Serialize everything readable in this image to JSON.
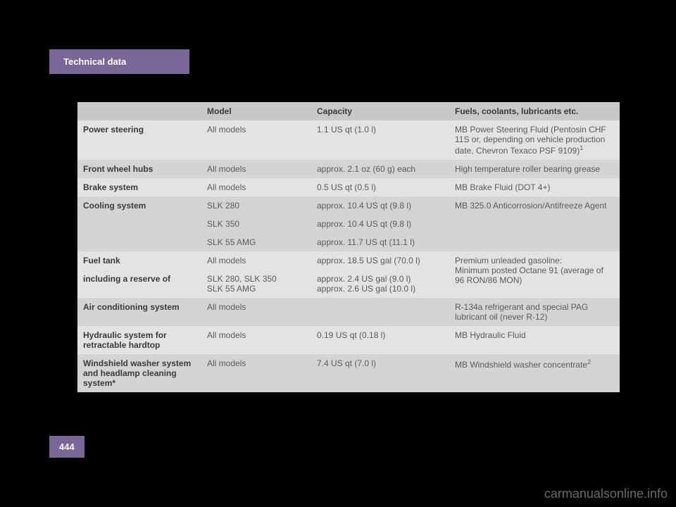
{
  "header": {
    "title": "Technical data"
  },
  "page_number": "444",
  "watermark": "carmanualsonline.info",
  "table": {
    "columns": [
      "",
      "Model",
      "Capacity",
      "Fuels, coolants, lubricants etc."
    ],
    "rows": [
      {
        "label": "Power steering",
        "model": "All models",
        "capacity": "1.1 US qt (1.0 l)",
        "fuels": "MB Power Steering Fluid (Pentosin CHF 11S or, depending on vehicle production date, Chevron Texaco PSF 9109)",
        "sup": "1",
        "shade": "light"
      },
      {
        "label": "Front wheel hubs",
        "model": "All models",
        "capacity": "approx. 2.1 oz (60 g) each",
        "fuels": "High temperature roller bearing grease",
        "shade": "dark"
      },
      {
        "label": "Brake system",
        "model": "All models",
        "capacity": "0.5 US qt (0.5 l)",
        "fuels": "MB Brake Fluid (DOT 4+)",
        "shade": "light"
      },
      {
        "label": "Cooling system",
        "model": "SLK 280",
        "capacity": "approx. 10.4 US qt (9.8 l)",
        "fuels": "MB 325.0 Anticorrosion/Antifreeze Agent",
        "shade": "dark",
        "rowspan_label": 3,
        "rowspan_fuels": 3
      },
      {
        "label": "",
        "model": "SLK 350",
        "capacity": "approx. 10.4 US qt (9.8 l)",
        "fuels": "",
        "shade": "dark",
        "skip_label": true,
        "skip_fuels": true
      },
      {
        "label": "",
        "model": "SLK 55 AMG",
        "capacity": "approx. 11.7 US qt (11.1 l)",
        "fuels": "",
        "shade": "dark",
        "skip_label": true,
        "skip_fuels": true
      },
      {
        "label": "Fuel tank",
        "model": "All models",
        "capacity": "approx. 18.5 US gal (70.0 l)",
        "fuels": "Premium unleaded gasoline:\nMinimum posted Octane 91 (average of\n96 RON/86 MON)",
        "shade": "light",
        "rowspan_fuels": 2
      },
      {
        "label": "including a reserve of",
        "model": "SLK 280, SLK 350\nSLK 55 AMG",
        "capacity": "approx. 2.4 US gal (9.0 l)\napprox. 2.6 US gal (10.0 l)",
        "fuels": "",
        "shade": "light",
        "skip_fuels": true
      },
      {
        "label": "Air conditioning system",
        "model": "All models",
        "capacity": "",
        "fuels": "R-134a refrigerant and special PAG lubricant oil (never R-12)",
        "shade": "dark"
      },
      {
        "label": "Hydraulic system for retractable hardtop",
        "model": "All models",
        "capacity": "0.19 US qt (0.18 l)",
        "fuels": "MB Hydraulic Fluid",
        "shade": "light"
      },
      {
        "label": "Windshield washer system and headlamp cleaning system*",
        "model": "All models",
        "capacity": "7.4 US qt (7.0 l)",
        "fuels": "MB Windshield washer concentrate",
        "sup": "2",
        "shade": "dark"
      }
    ]
  }
}
